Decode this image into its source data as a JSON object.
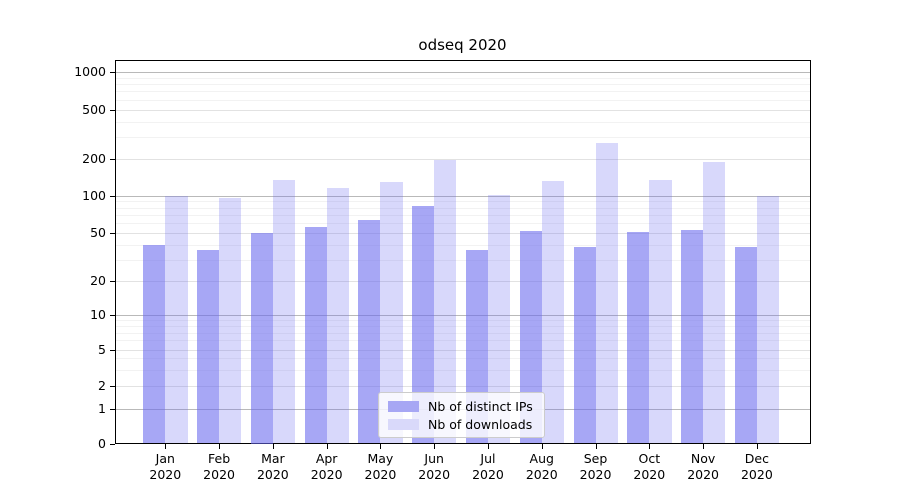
{
  "window": {
    "background": "#ffffff"
  },
  "chart_data": {
    "type": "bar",
    "title": "odseq 2020",
    "categories": [
      "Jan",
      "Feb",
      "Mar",
      "Apr",
      "May",
      "Jun",
      "Jul",
      "Aug",
      "Sep",
      "Oct",
      "Nov",
      "Dec"
    ],
    "category_year": "2020",
    "series": [
      {
        "name": "Nb of distinct IPs",
        "color": "#a7a7f4",
        "values": [
          40,
          36,
          50,
          56,
          64,
          82,
          36,
          52,
          38,
          51,
          53,
          38
        ]
      },
      {
        "name": "Nb of downloads",
        "color": "#d9d9fa",
        "values": [
          100,
          95,
          135,
          116,
          130,
          195,
          101,
          131,
          270,
          135,
          190,
          100
        ]
      }
    ],
    "yscale": "symlog",
    "ytick_values": [
      0,
      1,
      2,
      5,
      10,
      20,
      50,
      100,
      200,
      500,
      1000
    ],
    "ytick_labels": [
      "0",
      "1",
      "2",
      "5",
      "10",
      "20",
      "50",
      "100",
      "200",
      "500",
      "1000"
    ],
    "ylim": [
      0,
      1300
    ],
    "grid": "horizontal, log minor + major",
    "legend_position": "lower center",
    "xlabel": "",
    "ylabel": ""
  }
}
